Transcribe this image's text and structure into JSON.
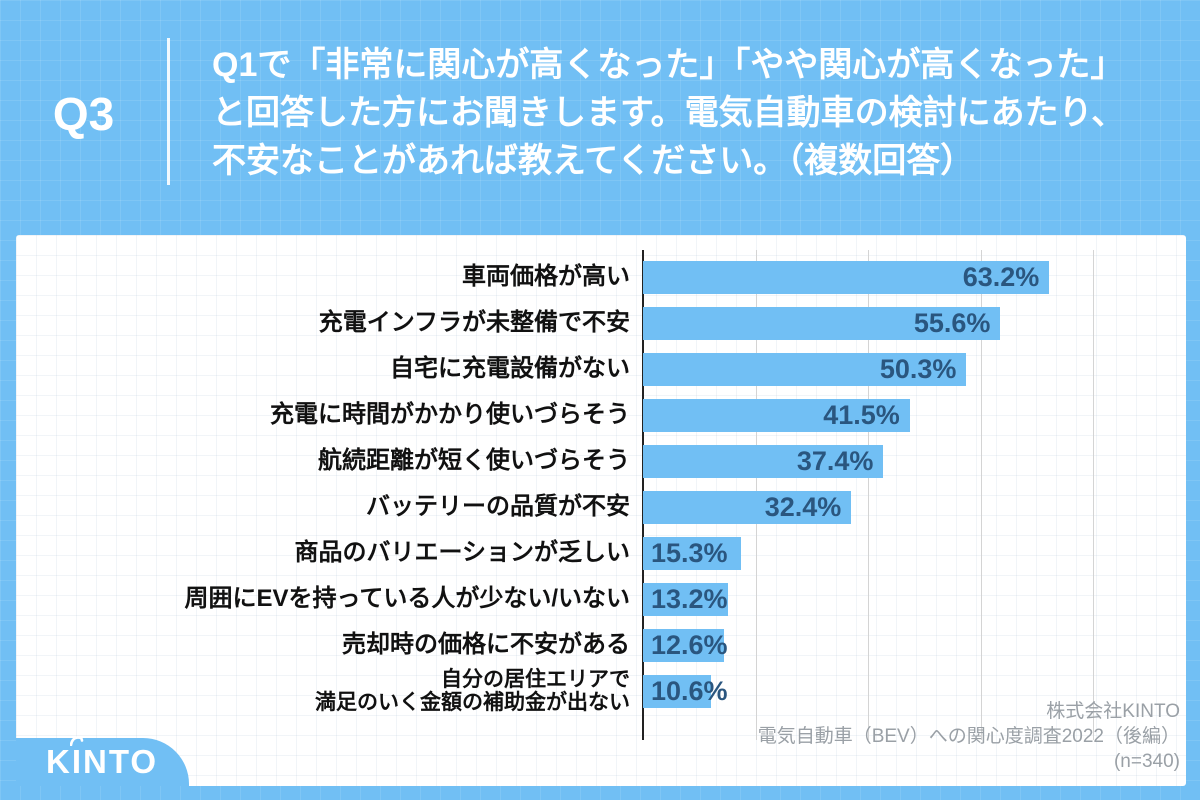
{
  "page": {
    "background_color": "#71BFF4",
    "card_color": "#ffffff"
  },
  "header": {
    "question_number": "Q3",
    "question_lines": [
      "Q1で「非常に関心が高くなった」「やや関心が高くなった」",
      "と回答した方にお聞きします。電気自動車の検討にあたり、",
      "不安なことがあれば教えてください。（複数回答）"
    ]
  },
  "chart_data": {
    "type": "bar",
    "orientation": "horizontal",
    "title": "",
    "xlabel": "",
    "ylabel": "",
    "xlim": [
      0,
      70
    ],
    "gridline_interval": 17.5,
    "grid": true,
    "legend": null,
    "value_suffix": "%",
    "bar_color": "#71BFF4",
    "value_label_color": "#2A567F",
    "category_label_color": "#111111",
    "axis_color": "#222222",
    "gridline_color": "#d4d4d4",
    "categories": [
      "車両価格が高い",
      "充電インフラが未整備で不安",
      "自宅に充電設備がない",
      "充電に時間がかかり使いづらそう",
      "航続距離が短く使いづらそう",
      "バッテリーの品質が不安",
      "商品のバリエーションが乏しい",
      "周囲にEVを持っている人が少ない/いない",
      "売却時の価格に不安がある",
      "自分の居住エリアで\n満足のいく金額の補助金が出ない"
    ],
    "values": [
      63.2,
      55.6,
      50.3,
      41.5,
      37.4,
      32.4,
      15.3,
      13.2,
      12.6,
      10.6
    ],
    "value_labels": [
      "63.2%",
      "55.6%",
      "50.3%",
      "41.5%",
      "37.4%",
      "32.4%",
      "15.3%",
      "13.2%",
      "12.6%",
      "10.6%"
    ]
  },
  "footer": {
    "logo_text": "KINTO",
    "logo_parts": [
      "K",
      "I",
      "NTO"
    ],
    "source_lines": [
      "株式会社KINTO",
      "電気自動車（BEV）への関心度調査2022（後編）",
      "(n=340)"
    ]
  }
}
